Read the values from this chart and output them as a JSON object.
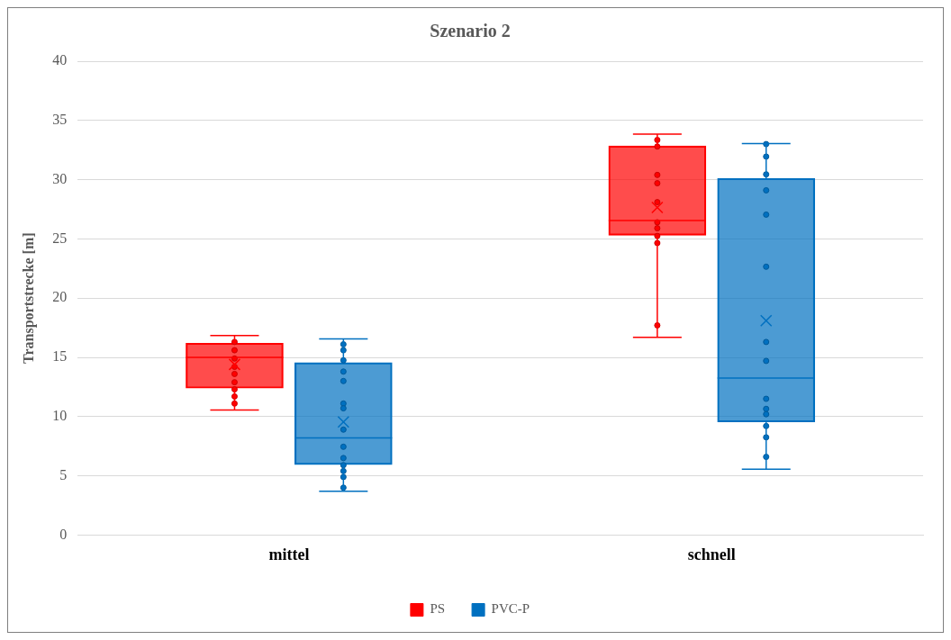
{
  "chart_data": {
    "type": "box",
    "title": "Szenario 2",
    "ylabel": "Transportstrecke [m]",
    "categories": [
      "mittel",
      "schnell"
    ],
    "ylim": [
      0,
      40
    ],
    "yticks": [
      0,
      5,
      10,
      15,
      20,
      25,
      30,
      35,
      40
    ],
    "grid": "y",
    "legend": "bottom",
    "series": [
      {
        "name": "PS",
        "color": "#ff0000",
        "boxes": [
          {
            "low": 10.55,
            "q1": 12.4,
            "median": 15.0,
            "q3": 16.2,
            "high": 16.85,
            "mean": 14.4
          },
          {
            "low": 16.7,
            "q1": 25.3,
            "median": 26.55,
            "q3": 32.85,
            "high": 33.85,
            "mean": 27.65
          }
        ]
      },
      {
        "name": "PVC-P",
        "color": "#0070c0",
        "boxes": [
          {
            "low": 3.7,
            "q1": 5.95,
            "median": 8.2,
            "q3": 14.55,
            "high": 16.55,
            "mean": 9.55
          },
          {
            "low": 5.55,
            "q1": 9.55,
            "median": 13.25,
            "q3": 30.1,
            "high": 33.05,
            "mean": 18.1
          }
        ]
      },
      {
        "type": "scatter",
        "color": "#ff0000",
        "x": [
          "mittel",
          "mittel",
          "mittel",
          "mittel",
          "mittel",
          "mittel",
          "mittel",
          "mittel",
          "mittel",
          "schnell",
          "schnell",
          "schnell",
          "schnell",
          "schnell",
          "schnell",
          "schnell",
          "schnell",
          "schnell",
          "schnell"
        ],
        "values": [
          16.3,
          15.6,
          14.9,
          14.2,
          13.6,
          12.9,
          12.3,
          11.7,
          11.1,
          33.35,
          32.8,
          30.4,
          29.7,
          28.1,
          26.4,
          25.9,
          25.25,
          24.65,
          17.7
        ]
      },
      {
        "type": "scatter",
        "color": "#0070c0",
        "x": [
          "mittel",
          "mittel",
          "mittel",
          "mittel",
          "mittel",
          "mittel",
          "mittel",
          "mittel",
          "mittel",
          "mittel",
          "mittel",
          "mittel",
          "mittel",
          "mittel",
          "schnell",
          "schnell",
          "schnell",
          "schnell",
          "schnell",
          "schnell",
          "schnell",
          "schnell",
          "schnell",
          "schnell",
          "schnell",
          "schnell",
          "schnell",
          "schnell"
        ],
        "values": [
          16.1,
          15.6,
          14.75,
          13.8,
          13.0,
          11.1,
          10.7,
          8.9,
          7.45,
          6.5,
          5.9,
          5.4,
          4.9,
          4.0,
          33.0,
          31.95,
          30.45,
          29.1,
          27.05,
          22.65,
          16.3,
          14.7,
          11.5,
          10.65,
          10.2,
          9.2,
          8.25,
          6.6
        ]
      }
    ]
  }
}
